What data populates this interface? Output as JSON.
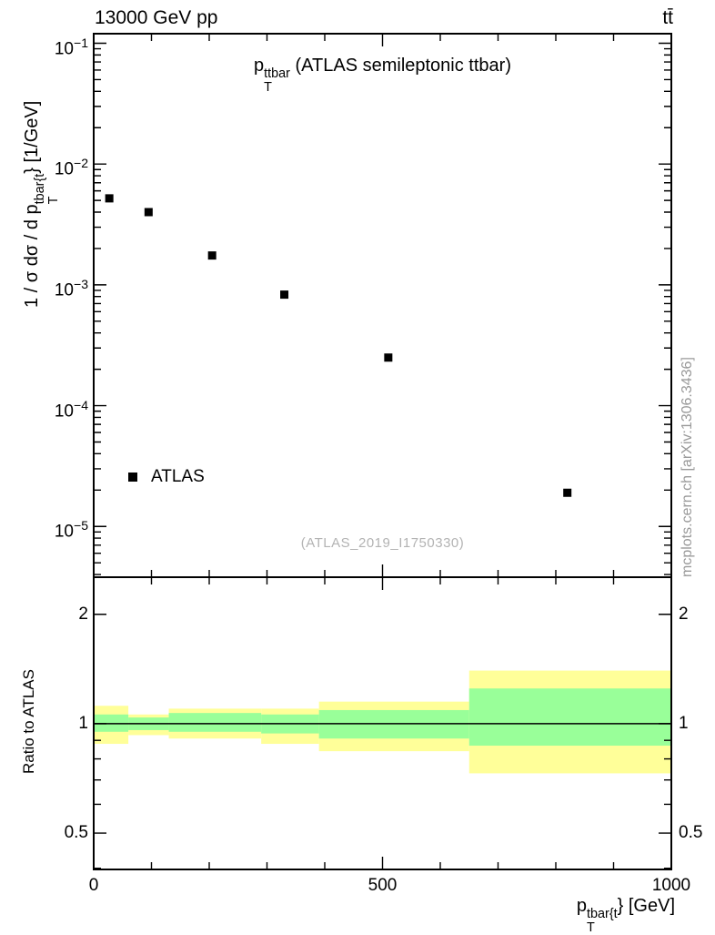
{
  "header": {
    "energy": "13000 GeV pp",
    "process": "tt̄"
  },
  "main_panel": {
    "title": {
      "pre": "p",
      "sup": "ttbar",
      "sub": "T",
      "post": " (ATLAS semileptonic ttbar)"
    },
    "ylabel": {
      "pre": "1 / σ dσ / d p",
      "sup": "tbar{t",
      "sub": "T",
      "post": "} [1/GeV]"
    },
    "legend": {
      "label": "ATLAS"
    },
    "watermark": "(ATLAS_2019_I1750330)"
  },
  "ratio_panel": {
    "ylabel": "Ratio to ATLAS"
  },
  "x_axis": {
    "label": {
      "pre": "p",
      "sup": "tbar{t",
      "sub": "T",
      "post": "} [GeV]"
    }
  },
  "side_note": "mcplots.cern.ch [arXiv:1306.3436]",
  "chart_data": {
    "type": "scatter",
    "title": "p_T^{ttbar} (ATLAS semileptonic ttbar)",
    "xlabel": "p_T^{tbar{t}} [GeV]",
    "ylabel": "1 / σ dσ / d p_T^{tbar{t}} [1/GeV]",
    "legend_position": "inside-left",
    "grid": false,
    "x_ticks": [
      {
        "v": 0,
        "label": "0"
      },
      {
        "v": 500,
        "label": "500"
      },
      {
        "v": 1000,
        "label": "1000"
      }
    ],
    "x_minor_step": 100,
    "top": {
      "x_range": [
        0,
        1000
      ],
      "y_range": [
        3.8e-06,
        0.12
      ],
      "y_scale": "log",
      "y_ticks": [
        {
          "v": 0.1,
          "base": "10",
          "exp": "−1"
        },
        {
          "v": 0.01,
          "base": "10",
          "exp": "−2"
        },
        {
          "v": 0.001,
          "base": "10",
          "exp": "−3"
        },
        {
          "v": 0.0001,
          "base": "10",
          "exp": "−4"
        },
        {
          "v": 1e-05,
          "base": "10",
          "exp": "−5"
        }
      ],
      "series": [
        {
          "name": "ATLAS",
          "marker": "square",
          "color": "#000000",
          "points": [
            [
              27,
              0.0052
            ],
            [
              95,
              0.004
            ],
            [
              205,
              0.00175
            ],
            [
              330,
              0.00083
            ],
            [
              510,
              0.00025
            ],
            [
              820,
              1.9e-05
            ]
          ]
        }
      ]
    },
    "ratio": {
      "label": "Ratio to ATLAS",
      "x_range": [
        0,
        1000
      ],
      "y_range": [
        0.397,
        2.53
      ],
      "y_scale": "log",
      "y_ticks": [
        {
          "v": 2,
          "label": "2"
        },
        {
          "v": 1,
          "label": "1"
        },
        {
          "v": 0.5,
          "label": "0.5"
        }
      ],
      "y_minor_ticks": [
        0.4,
        0.6,
        0.7,
        0.8,
        0.9
      ],
      "reference_line": 1,
      "band_colors": {
        "outer": "#ffff99",
        "inner": "#99ff99"
      },
      "bands": [
        {
          "x": [
            0,
            60
          ],
          "outer": [
            0.88,
            1.12
          ],
          "inner": [
            0.95,
            1.06
          ]
        },
        {
          "x": [
            60,
            130
          ],
          "outer": [
            0.93,
            1.06
          ],
          "inner": [
            0.96,
            1.04
          ]
        },
        {
          "x": [
            130,
            290
          ],
          "outer": [
            0.91,
            1.1
          ],
          "inner": [
            0.95,
            1.07
          ]
        },
        {
          "x": [
            290,
            390
          ],
          "outer": [
            0.88,
            1.1
          ],
          "inner": [
            0.94,
            1.06
          ]
        },
        {
          "x": [
            390,
            650
          ],
          "outer": [
            0.84,
            1.15
          ],
          "inner": [
            0.91,
            1.09
          ]
        },
        {
          "x": [
            650,
            1000
          ],
          "outer": [
            0.73,
            1.4
          ],
          "inner": [
            0.87,
            1.25
          ]
        }
      ]
    }
  }
}
